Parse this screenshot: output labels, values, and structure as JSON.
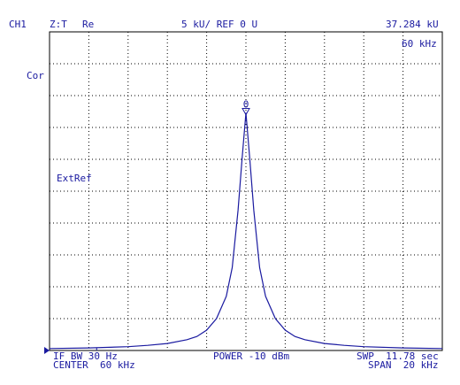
{
  "header": {
    "channel": "CH1",
    "format": "Z:T",
    "part": "Re",
    "scale": "5 kU/ REF 0 U",
    "marker_value": "37.284 kU",
    "marker_freq": "60 kHz"
  },
  "side": {
    "correction": "Cor",
    "ext_ref": "ExtRef"
  },
  "footer": {
    "if_bw": "IF BW 30 Hz",
    "center": "CENTER  60 kHz",
    "power": "POWER -10 dBm",
    "sweep": "SWP  11.78 sec",
    "span": "SPAN  20 kHz"
  },
  "marker": {
    "label": "0"
  },
  "colors": {
    "trace": "#1a1aa0",
    "grid": "#000000",
    "text": "#1a1aa0"
  },
  "chart_data": {
    "type": "line",
    "title": "",
    "xlabel": "",
    "ylabel": "",
    "xlim": [
      50,
      70
    ],
    "ylim": [
      0,
      50
    ],
    "x_divisions": 10,
    "y_divisions": 10,
    "grid": true,
    "series": [
      {
        "x": [
          50,
          52,
          54,
          55,
          56,
          57,
          57.5,
          58,
          58.5,
          59,
          59.3,
          59.6,
          59.8,
          60,
          60.2,
          60.4,
          60.7,
          61,
          61.5,
          62,
          62.5,
          63,
          64,
          65,
          66,
          68,
          70
        ],
        "values": [
          0.3,
          0.4,
          0.6,
          0.8,
          1.1,
          1.7,
          2.2,
          3.2,
          5.0,
          8.5,
          13,
          22,
          30,
          37.284,
          30,
          22,
          13,
          8.5,
          5.0,
          3.2,
          2.2,
          1.7,
          1.1,
          0.8,
          0.6,
          0.4,
          0.3
        ]
      }
    ],
    "marker": {
      "x": 60,
      "y": 37.284
    }
  }
}
